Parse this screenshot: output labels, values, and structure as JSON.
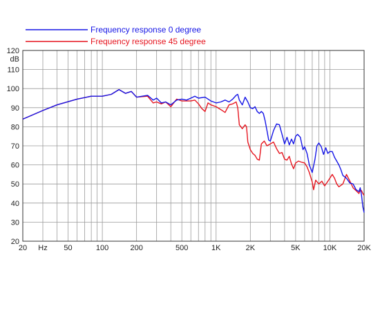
{
  "chart_data": {
    "type": "line",
    "title": "",
    "xscale": "log",
    "xlim": [
      20,
      20000
    ],
    "ylim": [
      20,
      120
    ],
    "grid": true,
    "ylabel": "dB",
    "xlabel": "Hz",
    "legend_position": "top-left",
    "x_ticks": [
      {
        "value": 20,
        "label": "20"
      },
      {
        "value": 50,
        "label": "50"
      },
      {
        "value": 100,
        "label": "100"
      },
      {
        "value": 200,
        "label": "200"
      },
      {
        "value": 500,
        "label": "500"
      },
      {
        "value": 1000,
        "label": "1K"
      },
      {
        "value": 2000,
        "label": "2K"
      },
      {
        "value": 5000,
        "label": "5K"
      },
      {
        "value": 10000,
        "label": "10K"
      },
      {
        "value": 20000,
        "label": "20K"
      }
    ],
    "x_unit_label": {
      "value": 30,
      "label": "Hz"
    },
    "y_ticks": [
      {
        "value": 20,
        "label": "20"
      },
      {
        "value": 30,
        "label": "30"
      },
      {
        "value": 40,
        "label": "40"
      },
      {
        "value": 50,
        "label": "50"
      },
      {
        "value": 60,
        "label": "60"
      },
      {
        "value": 70,
        "label": "70"
      },
      {
        "value": 80,
        "label": "80"
      },
      {
        "value": 90,
        "label": "90"
      },
      {
        "value": 100,
        "label": "100"
      },
      {
        "value": 110,
        "label": "110"
      },
      {
        "value": 120,
        "label": "120"
      }
    ],
    "series": [
      {
        "name": "Frequency response 0 degree",
        "color": "#1414e6",
        "points": [
          [
            20,
            84
          ],
          [
            30,
            88.5
          ],
          [
            40,
            91.5
          ],
          [
            60,
            94.5
          ],
          [
            80,
            96
          ],
          [
            100,
            96
          ],
          [
            120,
            97
          ],
          [
            140,
            99.5
          ],
          [
            160,
            97.5
          ],
          [
            180,
            98.5
          ],
          [
            200,
            95.5
          ],
          [
            250,
            96.5
          ],
          [
            280,
            94
          ],
          [
            300,
            95
          ],
          [
            330,
            92.5
          ],
          [
            360,
            93
          ],
          [
            400,
            91.5
          ],
          [
            450,
            94
          ],
          [
            500,
            94.5
          ],
          [
            550,
            94
          ],
          [
            600,
            95
          ],
          [
            650,
            96
          ],
          [
            700,
            95
          ],
          [
            800,
            95.5
          ],
          [
            900,
            93.5
          ],
          [
            1000,
            92.5
          ],
          [
            1100,
            93
          ],
          [
            1200,
            94
          ],
          [
            1300,
            93
          ],
          [
            1400,
            94.5
          ],
          [
            1500,
            96.5
          ],
          [
            1550,
            97
          ],
          [
            1600,
            94
          ],
          [
            1700,
            91.5
          ],
          [
            1800,
            95.5
          ],
          [
            1900,
            93
          ],
          [
            2000,
            90
          ],
          [
            2100,
            89.5
          ],
          [
            2200,
            90.5
          ],
          [
            2300,
            88
          ],
          [
            2400,
            87
          ],
          [
            2500,
            88
          ],
          [
            2600,
            87
          ],
          [
            2700,
            83
          ],
          [
            2800,
            78
          ],
          [
            2900,
            73
          ],
          [
            3000,
            72.5
          ],
          [
            3200,
            78
          ],
          [
            3400,
            81.5
          ],
          [
            3600,
            81
          ],
          [
            3800,
            76
          ],
          [
            4000,
            71
          ],
          [
            4200,
            74.5
          ],
          [
            4400,
            70.5
          ],
          [
            4600,
            73.5
          ],
          [
            4800,
            71
          ],
          [
            5000,
            75
          ],
          [
            5200,
            76
          ],
          [
            5500,
            74.5
          ],
          [
            5800,
            68
          ],
          [
            6000,
            69.5
          ],
          [
            6300,
            66
          ],
          [
            6600,
            60
          ],
          [
            7000,
            56
          ],
          [
            7400,
            63
          ],
          [
            7700,
            70
          ],
          [
            8000,
            71.5
          ],
          [
            8400,
            69.5
          ],
          [
            8800,
            65.5
          ],
          [
            9200,
            69
          ],
          [
            9600,
            66
          ],
          [
            10000,
            67
          ],
          [
            10500,
            67
          ],
          [
            11000,
            64
          ],
          [
            11500,
            62
          ],
          [
            12000,
            60
          ],
          [
            12500,
            57.5
          ],
          [
            13000,
            54.5
          ],
          [
            14000,
            53
          ],
          [
            15000,
            50.5
          ],
          [
            16000,
            50
          ],
          [
            17000,
            47
          ],
          [
            18000,
            46
          ],
          [
            18500,
            48
          ],
          [
            19000,
            44
          ],
          [
            19500,
            38
          ],
          [
            20000,
            35
          ]
        ]
      },
      {
        "name": "Frequency response 45 degree",
        "color": "#e6141e",
        "points": [
          [
            20,
            84
          ],
          [
            30,
            88.5
          ],
          [
            40,
            91.5
          ],
          [
            60,
            94.5
          ],
          [
            80,
            96
          ],
          [
            100,
            96
          ],
          [
            120,
            97
          ],
          [
            140,
            99.5
          ],
          [
            160,
            97.5
          ],
          [
            180,
            98.5
          ],
          [
            200,
            95.5
          ],
          [
            250,
            96
          ],
          [
            280,
            92.5
          ],
          [
            300,
            93
          ],
          [
            330,
            92
          ],
          [
            360,
            93
          ],
          [
            400,
            90.5
          ],
          [
            450,
            94.5
          ],
          [
            500,
            93.5
          ],
          [
            550,
            93.5
          ],
          [
            600,
            93.5
          ],
          [
            650,
            94
          ],
          [
            700,
            92
          ],
          [
            750,
            89.5
          ],
          [
            800,
            88
          ],
          [
            850,
            92.5
          ],
          [
            900,
            91.5
          ],
          [
            1000,
            90.5
          ],
          [
            1100,
            89
          ],
          [
            1200,
            87.5
          ],
          [
            1300,
            91.5
          ],
          [
            1400,
            92
          ],
          [
            1500,
            93
          ],
          [
            1550,
            90
          ],
          [
            1600,
            81
          ],
          [
            1700,
            79
          ],
          [
            1800,
            81
          ],
          [
            1850,
            80
          ],
          [
            1900,
            72
          ],
          [
            2000,
            68
          ],
          [
            2100,
            66
          ],
          [
            2200,
            65
          ],
          [
            2300,
            63
          ],
          [
            2400,
            62.5
          ],
          [
            2500,
            71
          ],
          [
            2650,
            72.5
          ],
          [
            2800,
            70
          ],
          [
            3000,
            71
          ],
          [
            3200,
            72
          ],
          [
            3400,
            68.5
          ],
          [
            3600,
            66
          ],
          [
            3800,
            66.5
          ],
          [
            4000,
            63
          ],
          [
            4200,
            62.5
          ],
          [
            4400,
            64.5
          ],
          [
            4600,
            60.5
          ],
          [
            4800,
            58
          ],
          [
            5000,
            61
          ],
          [
            5300,
            62
          ],
          [
            5600,
            61.5
          ],
          [
            6000,
            61
          ],
          [
            6300,
            59
          ],
          [
            6600,
            56
          ],
          [
            7000,
            51
          ],
          [
            7200,
            47
          ],
          [
            7500,
            52
          ],
          [
            8000,
            50
          ],
          [
            8500,
            51.5
          ],
          [
            9000,
            49
          ],
          [
            9500,
            51
          ],
          [
            10000,
            53
          ],
          [
            10500,
            55
          ],
          [
            11000,
            53
          ],
          [
            11500,
            50
          ],
          [
            12000,
            48.5
          ],
          [
            13000,
            50
          ],
          [
            14000,
            55
          ],
          [
            15000,
            51.5
          ],
          [
            16000,
            48
          ],
          [
            17000,
            46.5
          ],
          [
            18000,
            45
          ],
          [
            18500,
            47
          ],
          [
            19000,
            46.5
          ],
          [
            19500,
            45
          ],
          [
            20000,
            44
          ]
        ]
      }
    ]
  }
}
